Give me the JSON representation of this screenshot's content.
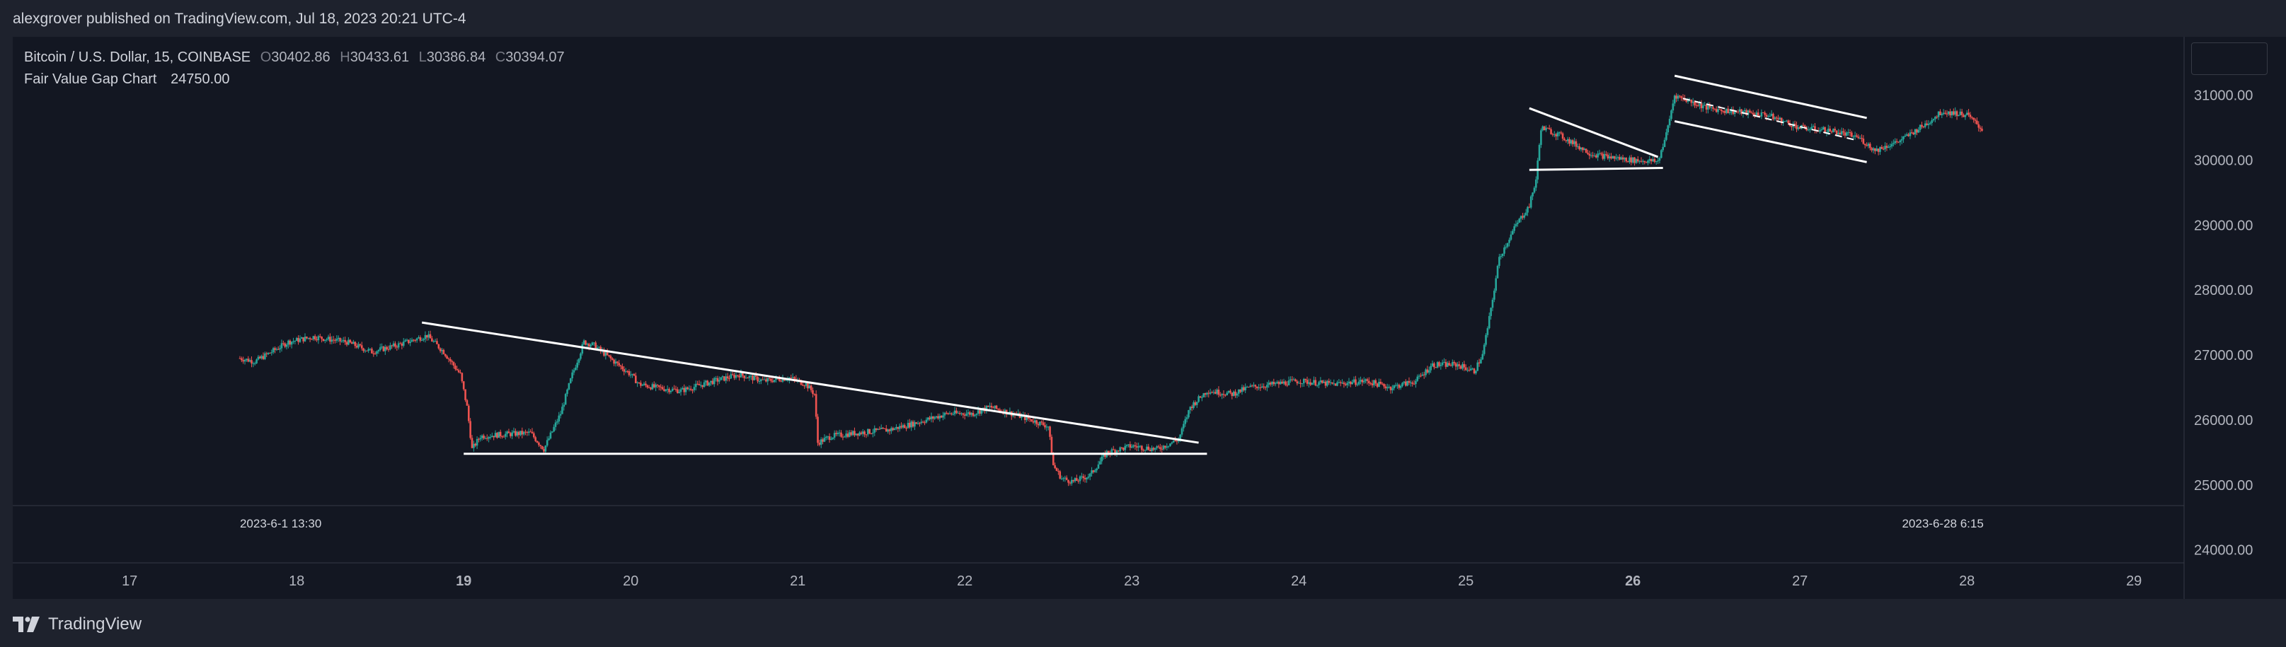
{
  "header": {
    "published_text": "alexgrover published on TradingView.com, Jul 18, 2023 20:21 UTC-4"
  },
  "footer": {
    "brand_label": "TradingView"
  },
  "legend": {
    "symbol": "Bitcoin / U.S. Dollar, 15, COINBASE",
    "open_key": "O",
    "open": "30402.86",
    "high_key": "H",
    "high": "30433.61",
    "low_key": "L",
    "low": "30386.84",
    "close_key": "C",
    "close": "30394.07",
    "indicator_name": "Fair Value Gap Chart",
    "indicator_value": "24750.00"
  },
  "colors": {
    "background": "#131722",
    "frame": "#1e222d",
    "up": "#26a69a",
    "down": "#ef5350",
    "text": "#d1d4dc",
    "axis_text": "#b2b5be",
    "lines": "#ffffff"
  },
  "chart_data": {
    "type": "candlestick",
    "symbol": "Bitcoin / U.S. Dollar",
    "interval": "15",
    "exchange": "COINBASE",
    "y_tick_labels": [
      "24000.00",
      "25000.00",
      "26000.00",
      "27000.00",
      "28000.00",
      "29000.00",
      "30000.00",
      "31000.00"
    ],
    "y_ticks": [
      24000,
      25000,
      26000,
      27000,
      28000,
      29000,
      30000,
      31000
    ],
    "ylim": [
      23800,
      31900
    ],
    "x_tick_labels": [
      "17",
      "18",
      "19",
      "20",
      "21",
      "22",
      "23",
      "24",
      "25",
      "26",
      "27",
      "28",
      "29"
    ],
    "x_ticks": [
      17,
      18,
      19,
      20,
      21,
      22,
      23,
      24,
      25,
      26,
      27,
      28,
      29
    ],
    "bold_x_ticks": [
      "19",
      "26"
    ],
    "xlim": [
      16.3,
      29.3
    ],
    "range_labels": {
      "start": "2023-6-1 13:30",
      "end": "2023-6-28 6:15"
    },
    "price_path": [
      [
        17.66,
        26950
      ],
      [
        17.75,
        26900
      ],
      [
        17.85,
        27050
      ],
      [
        17.95,
        27200
      ],
      [
        18.1,
        27280
      ],
      [
        18.3,
        27200
      ],
      [
        18.45,
        27050
      ],
      [
        18.6,
        27150
      ],
      [
        18.78,
        27300
      ],
      [
        18.88,
        27050
      ],
      [
        18.98,
        26700
      ],
      [
        19.02,
        26200
      ],
      [
        19.05,
        25550
      ],
      [
        19.1,
        25750
      ],
      [
        19.25,
        25780
      ],
      [
        19.4,
        25800
      ],
      [
        19.48,
        25550
      ],
      [
        19.58,
        26100
      ],
      [
        19.65,
        26700
      ],
      [
        19.72,
        27200
      ],
      [
        19.78,
        27150
      ],
      [
        19.9,
        26900
      ],
      [
        20.0,
        26700
      ],
      [
        20.05,
        26550
      ],
      [
        20.15,
        26500
      ],
      [
        20.3,
        26450
      ],
      [
        20.5,
        26600
      ],
      [
        20.65,
        26700
      ],
      [
        20.8,
        26600
      ],
      [
        20.95,
        26650
      ],
      [
        21.05,
        26550
      ],
      [
        21.1,
        26400
      ],
      [
        21.12,
        25650
      ],
      [
        21.2,
        25750
      ],
      [
        21.35,
        25800
      ],
      [
        21.55,
        25850
      ],
      [
        21.7,
        25950
      ],
      [
        21.9,
        26100
      ],
      [
        22.05,
        26100
      ],
      [
        22.15,
        26200
      ],
      [
        22.28,
        26100
      ],
      [
        22.4,
        26000
      ],
      [
        22.5,
        25900
      ],
      [
        22.53,
        25300
      ],
      [
        22.58,
        25100
      ],
      [
        22.65,
        25050
      ],
      [
        22.75,
        25150
      ],
      [
        22.85,
        25500
      ],
      [
        23.0,
        25600
      ],
      [
        23.15,
        25550
      ],
      [
        23.28,
        25700
      ],
      [
        23.35,
        26200
      ],
      [
        23.45,
        26450
      ],
      [
        23.6,
        26400
      ],
      [
        23.7,
        26500
      ],
      [
        23.85,
        26550
      ],
      [
        24.0,
        26600
      ],
      [
        24.2,
        26550
      ],
      [
        24.4,
        26600
      ],
      [
        24.55,
        26500
      ],
      [
        24.7,
        26600
      ],
      [
        24.8,
        26850
      ],
      [
        24.95,
        26850
      ],
      [
        25.05,
        26750
      ],
      [
        25.1,
        27000
      ],
      [
        25.15,
        27700
      ],
      [
        25.2,
        28500
      ],
      [
        25.3,
        29000
      ],
      [
        25.38,
        29300
      ],
      [
        25.42,
        29700
      ],
      [
        25.45,
        30500
      ],
      [
        25.55,
        30400
      ],
      [
        25.65,
        30250
      ],
      [
        25.75,
        30100
      ],
      [
        25.85,
        30050
      ],
      [
        26.0,
        30000
      ],
      [
        26.15,
        29980
      ],
      [
        26.2,
        30400
      ],
      [
        26.25,
        31000
      ],
      [
        26.3,
        30950
      ],
      [
        26.45,
        30800
      ],
      [
        26.6,
        30750
      ],
      [
        26.8,
        30700
      ],
      [
        27.0,
        30500
      ],
      [
        27.2,
        30450
      ],
      [
        27.35,
        30350
      ],
      [
        27.45,
        30150
      ],
      [
        27.6,
        30300
      ],
      [
        27.75,
        30550
      ],
      [
        27.85,
        30750
      ],
      [
        28.0,
        30700
      ],
      [
        28.1,
        30450
      ]
    ],
    "drawn_lines": [
      {
        "name": "descending-triangle-resistance",
        "from": [
          18.75,
          27500
        ],
        "to": [
          23.4,
          25650
        ]
      },
      {
        "name": "descending-triangle-support",
        "from": [
          19.0,
          25480
        ],
        "to": [
          23.45,
          25480
        ]
      },
      {
        "name": "pennant-upper-line",
        "from": [
          25.38,
          30800
        ],
        "to": [
          26.15,
          30050
        ]
      },
      {
        "name": "pennant-lower-line",
        "from": [
          25.38,
          29850
        ],
        "to": [
          26.18,
          29880
        ]
      },
      {
        "name": "flag-upper-line",
        "from": [
          26.25,
          31300
        ],
        "to": [
          27.4,
          30650
        ]
      },
      {
        "name": "flag-lower-line",
        "from": [
          26.25,
          30600
        ],
        "to": [
          27.4,
          29970
        ]
      }
    ]
  }
}
